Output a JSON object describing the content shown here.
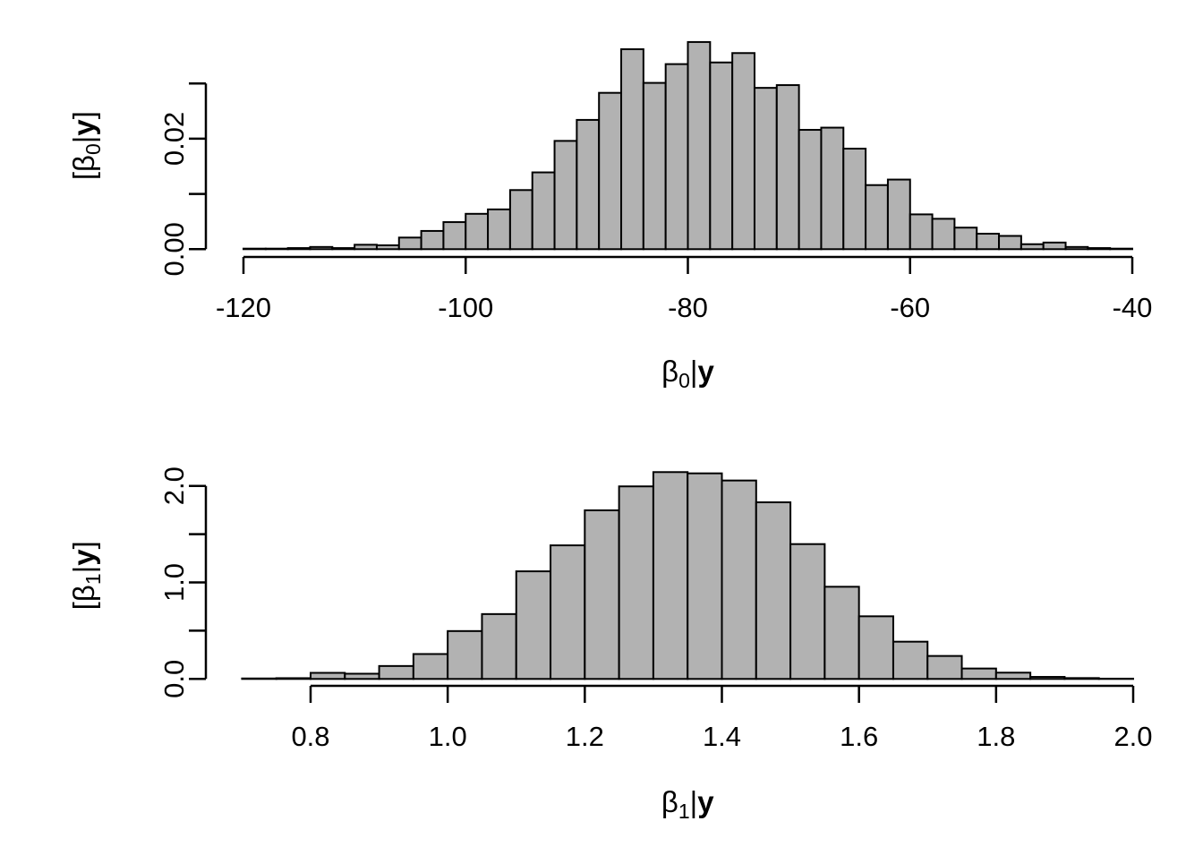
{
  "figure": {
    "background": "#ffffff",
    "bar_fill": "#b2b2b2",
    "bar_stroke": "#000000",
    "axis_color": "#000000",
    "text_color": "#000000",
    "layout": "two stacked base-R style density histograms"
  },
  "chart_data": [
    {
      "id": "beta0-posterior-histogram",
      "type": "bar",
      "subtype": "histogram-density",
      "title": "",
      "xlabel": "β₀|y",
      "ylabel": "[β₀|y]",
      "xlabel_rich": [
        {
          "t": "β"
        },
        {
          "t": "0",
          "sub": true
        },
        {
          "t": "|"
        },
        {
          "t": "y",
          "bold": true
        }
      ],
      "ylabel_rich": [
        {
          "t": "["
        },
        {
          "t": "β"
        },
        {
          "t": "0",
          "sub": true
        },
        {
          "t": "|"
        },
        {
          "t": "y",
          "bold": true
        },
        {
          "t": "]"
        }
      ],
      "xlim": [
        -120,
        -40
      ],
      "ylim": [
        0,
        0.0375
      ],
      "x_ticks": [
        -120,
        -100,
        -80,
        -60,
        -40
      ],
      "x_tick_labels": [
        "-120",
        "-100",
        "-80",
        "-60",
        "-40"
      ],
      "y_ticks": [
        0,
        0.01,
        0.02,
        0.03
      ],
      "y_tick_labels": [
        "0.00",
        "",
        "0.02",
        ""
      ],
      "grid": false,
      "legend": null,
      "bins": {
        "start": -120,
        "width": 2
      },
      "densities": [
        0.0001,
        0.0001,
        0.0002,
        0.0004,
        0.0002,
        0.0008,
        0.0007,
        0.0021,
        0.0033,
        0.0049,
        0.0064,
        0.0072,
        0.0107,
        0.0139,
        0.0196,
        0.0234,
        0.0283,
        0.0362,
        0.0301,
        0.0335,
        0.0375,
        0.0338,
        0.0355,
        0.0292,
        0.0297,
        0.0216,
        0.022,
        0.0182,
        0.0116,
        0.0126,
        0.0063,
        0.0055,
        0.0039,
        0.0028,
        0.0024,
        0.0009,
        0.0012,
        0.0004,
        0.0002,
        0.0001
      ]
    },
    {
      "id": "beta1-posterior-histogram",
      "type": "bar",
      "subtype": "histogram-density",
      "title": "",
      "xlabel": "β₁|y",
      "ylabel": "[β₁|y]",
      "xlabel_rich": [
        {
          "t": "β"
        },
        {
          "t": "1",
          "sub": true
        },
        {
          "t": "|"
        },
        {
          "t": "y",
          "bold": true
        }
      ],
      "ylabel_rich": [
        {
          "t": "["
        },
        {
          "t": "β"
        },
        {
          "t": "1",
          "sub": true
        },
        {
          "t": "|"
        },
        {
          "t": "y",
          "bold": true
        },
        {
          "t": "]"
        }
      ],
      "xlim": [
        0.7,
        2.0
      ],
      "ylim": [
        0,
        2.143
      ],
      "x_ticks": [
        0.8,
        1.0,
        1.2,
        1.4,
        1.6,
        1.8,
        2.0
      ],
      "x_tick_labels": [
        "0.8",
        "1.0",
        "1.2",
        "1.4",
        "1.6",
        "1.8",
        "2.0"
      ],
      "y_ticks": [
        0,
        0.5,
        1.0,
        1.5,
        2.0
      ],
      "y_tick_labels": [
        "0.0",
        "",
        "1.0",
        "",
        "2.0"
      ],
      "grid": false,
      "legend": null,
      "bins": {
        "start": 0.7,
        "width": 0.05
      },
      "densities": [
        0.005,
        0.008,
        0.063,
        0.054,
        0.134,
        0.258,
        0.496,
        0.672,
        1.115,
        1.384,
        1.747,
        1.995,
        2.143,
        2.13,
        2.056,
        1.83,
        1.397,
        0.955,
        0.649,
        0.386,
        0.238,
        0.108,
        0.065,
        0.021,
        0.009,
        0.003
      ]
    }
  ]
}
